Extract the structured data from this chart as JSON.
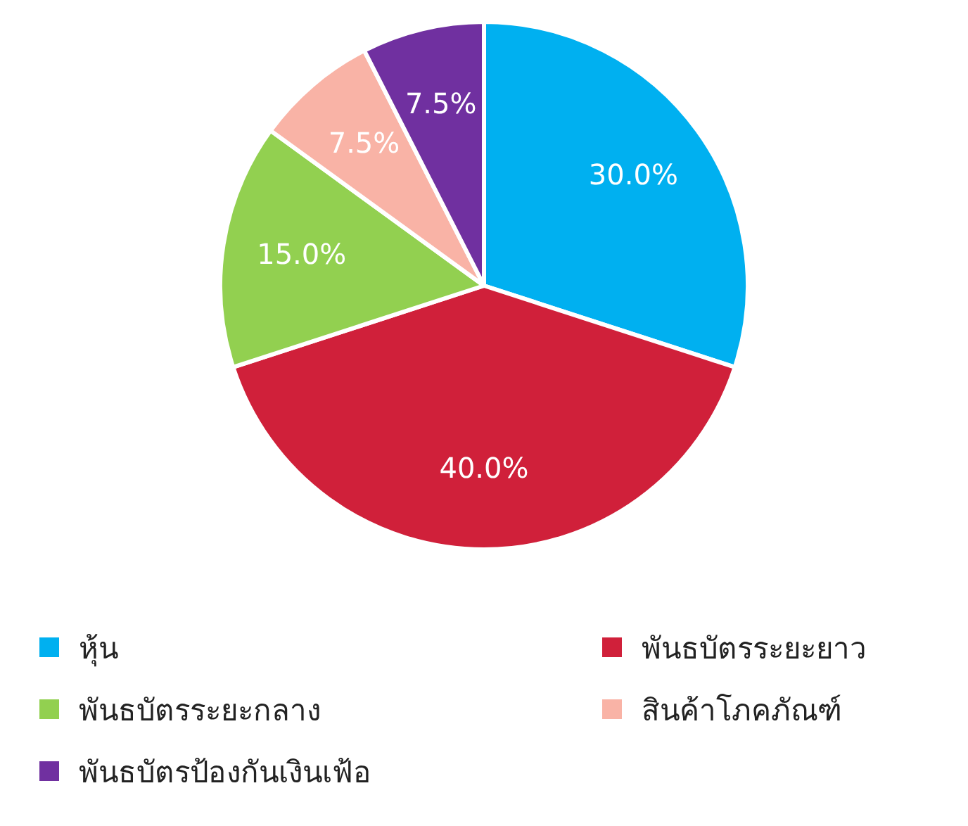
{
  "chart_data": {
    "type": "pie",
    "categories": [
      "หุ้น",
      "พันธบัตรระยะยาว",
      "พันธบัตรระยะกลาง",
      "สินค้าโภคภัณฑ์",
      "พันธบัตรป้องกันเงินเฟ้อ"
    ],
    "values": [
      30,
      40,
      15,
      7.5,
      7.5
    ],
    "colors": [
      "#00b0f0",
      "#d0203a",
      "#92d050",
      "#f9b3a6",
      "#7030a0"
    ],
    "value_labels": [
      "30.0%",
      "40.0%",
      "15.0%",
      "7.5%",
      "7.5%"
    ],
    "legend": "bottom"
  }
}
